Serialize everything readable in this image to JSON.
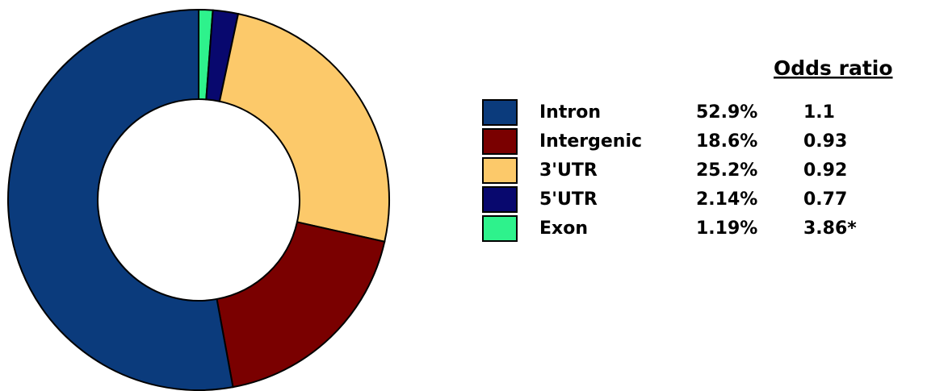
{
  "chart_data": {
    "type": "pie",
    "donut": true,
    "categories": [
      "Intron",
      "Intergenic",
      "3'UTR",
      "5'UTR",
      "Exon"
    ],
    "values": [
      52.9,
      18.6,
      25.2,
      2.14,
      1.19
    ],
    "value_labels": [
      "52.9%",
      "18.6%",
      "25.2%",
      "2.14%",
      "1.19%"
    ],
    "colors": [
      "#0b3b7c",
      "#7a0000",
      "#fcc96a",
      "#08086e",
      "#2ef28c"
    ],
    "table_header": "Odds ratio",
    "odds_ratios": [
      "1.1",
      "0.93",
      "0.92",
      "0.77",
      "3.86*"
    ]
  }
}
